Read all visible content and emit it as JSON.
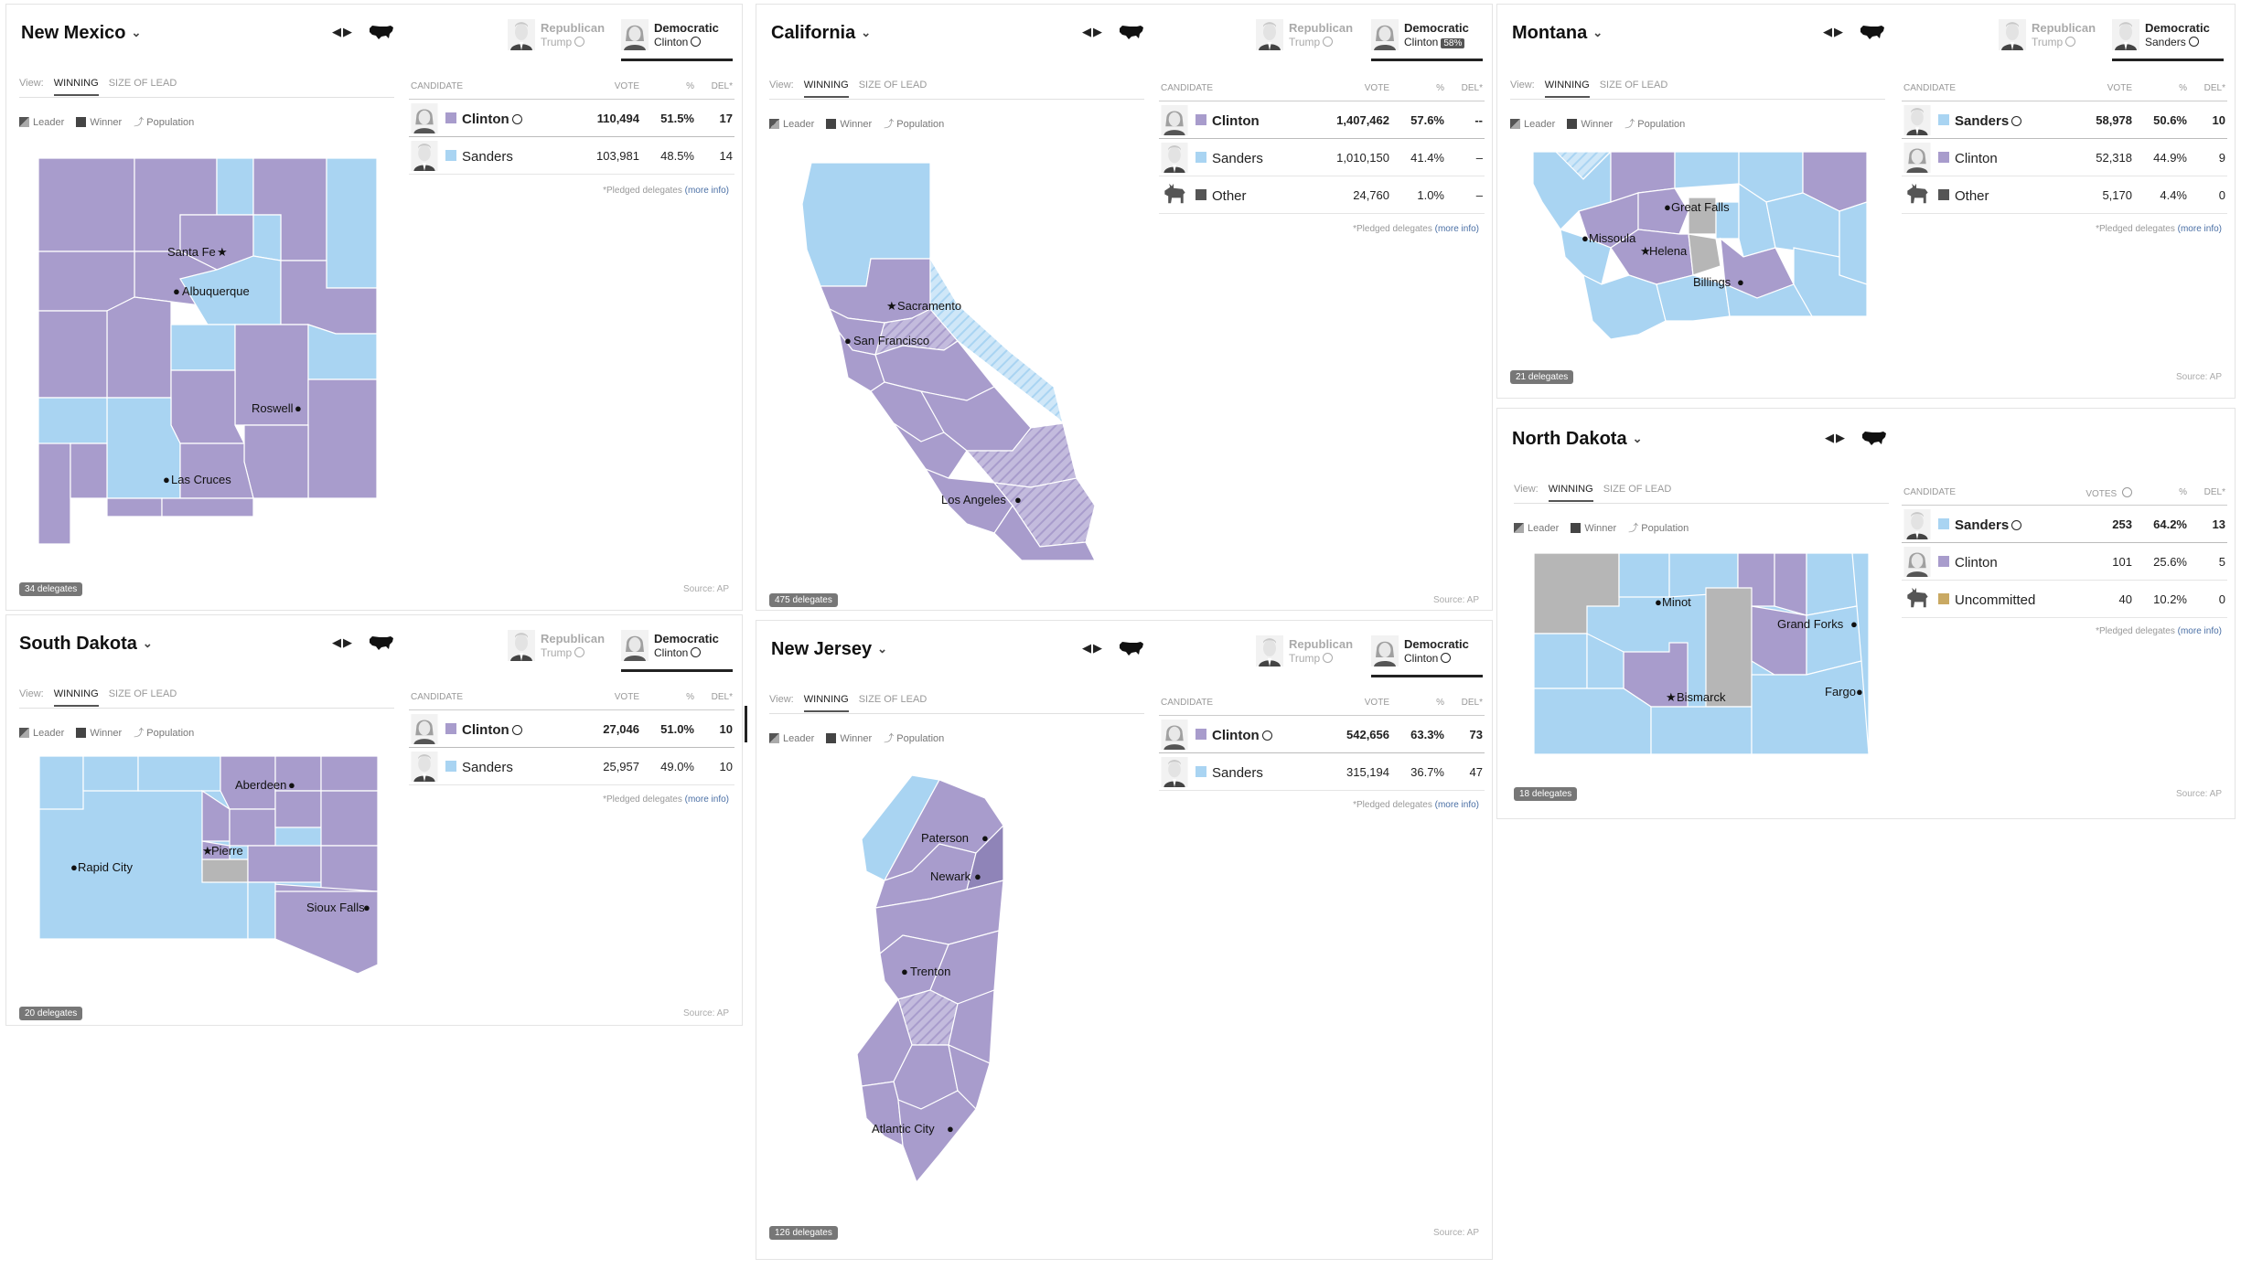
{
  "colors": {
    "clinton": "#a89ccc",
    "sanders": "#a9d4f2",
    "other": "#555555",
    "uncommitted": "#c9a963",
    "tie": "#b6b6b6",
    "boundary": "#ffffff"
  },
  "common": {
    "view_label": "View:",
    "tab_winning": "WINNING",
    "tab_size": "SIZE OF LEAD",
    "leader": "Leader",
    "winner": "Winner",
    "population": "Population",
    "republican": "Republican",
    "democratic": "Democratic",
    "col_candidate": "CANDIDATE",
    "col_vote": "VOTE",
    "col_votes": "VOTES",
    "col_pct": "%",
    "col_del": "DEL*",
    "pledged_text": "*Pledged delegates",
    "more_info": "(more info)",
    "source": "Source: AP"
  },
  "panels": {
    "nm": {
      "state": "New Mexico",
      "rep_candidate": "Trump",
      "dem_candidate": "Clinton",
      "delegates": "34 delegates",
      "rows": [
        {
          "name": "Clinton",
          "vote": "110,494",
          "pct": "51.5%",
          "del": "17",
          "avatar": "clinton-avatar",
          "color": "clinton",
          "check": true
        },
        {
          "name": "Sanders",
          "vote": "103,981",
          "pct": "48.5%",
          "del": "14",
          "avatar": "sanders-avatar",
          "color": "sanders",
          "check": false
        }
      ],
      "cities": [
        "Santa Fe",
        "Albuquerque",
        "Roswell",
        "Las Cruces"
      ]
    },
    "ca": {
      "state": "California",
      "rep_candidate": "Trump",
      "dem_candidate": "Clinton",
      "dem_badge": "58%",
      "delegates": "475 delegates",
      "rows": [
        {
          "name": "Clinton",
          "vote": "1,407,462",
          "pct": "57.6%",
          "del": "--",
          "avatar": "clinton-avatar",
          "color": "clinton",
          "check": false
        },
        {
          "name": "Sanders",
          "vote": "1,010,150",
          "pct": "41.4%",
          "del": "–",
          "avatar": "sanders-avatar",
          "color": "sanders",
          "check": false
        },
        {
          "name": "Other",
          "vote": "24,760",
          "pct": "1.0%",
          "del": "–",
          "avatar": "donkey-icon",
          "color": "other",
          "check": false
        }
      ],
      "cities": [
        "Sacramento",
        "San Francisco",
        "Los Angeles"
      ]
    },
    "mt": {
      "state": "Montana",
      "rep_candidate": "Trump",
      "dem_candidate": "Sanders",
      "delegates": "21 delegates",
      "rows": [
        {
          "name": "Sanders",
          "vote": "58,978",
          "pct": "50.6%",
          "del": "10",
          "avatar": "sanders-avatar",
          "color": "sanders",
          "check": true
        },
        {
          "name": "Clinton",
          "vote": "52,318",
          "pct": "44.9%",
          "del": "9",
          "avatar": "clinton-avatar",
          "color": "clinton",
          "check": false
        },
        {
          "name": "Other",
          "vote": "5,170",
          "pct": "4.4%",
          "del": "0",
          "avatar": "donkey-icon",
          "color": "other",
          "check": false
        }
      ],
      "cities": [
        "Great Falls",
        "Missoula",
        "Helena",
        "Billings"
      ]
    },
    "nd": {
      "state": "North Dakota",
      "delegates": "18 delegates",
      "rows": [
        {
          "name": "Sanders",
          "vote": "253",
          "pct": "64.2%",
          "del": "13",
          "avatar": "sanders-avatar",
          "color": "sanders",
          "check": true
        },
        {
          "name": "Clinton",
          "vote": "101",
          "pct": "25.6%",
          "del": "5",
          "avatar": "clinton-avatar",
          "color": "clinton",
          "check": false
        },
        {
          "name": "Uncommitted",
          "vote": "40",
          "pct": "10.2%",
          "del": "0",
          "avatar": "donkey-icon",
          "color": "uncommitted",
          "check": false
        }
      ],
      "cities": [
        "Minot",
        "Grand Forks",
        "Bismarck",
        "Fargo"
      ]
    },
    "sd": {
      "state": "South Dakota",
      "rep_candidate": "Trump",
      "dem_candidate": "Clinton",
      "delegates": "20 delegates",
      "rows": [
        {
          "name": "Clinton",
          "vote": "27,046",
          "pct": "51.0%",
          "del": "10",
          "avatar": "clinton-avatar",
          "color": "clinton",
          "check": true
        },
        {
          "name": "Sanders",
          "vote": "25,957",
          "pct": "49.0%",
          "del": "10",
          "avatar": "sanders-avatar",
          "color": "sanders",
          "check": false
        }
      ],
      "cities": [
        "Aberdeen",
        "Pierre",
        "Rapid City",
        "Sioux Falls"
      ]
    },
    "nj": {
      "state": "New Jersey",
      "rep_candidate": "Trump",
      "dem_candidate": "Clinton",
      "delegates": "126 delegates",
      "rows": [
        {
          "name": "Clinton",
          "vote": "542,656",
          "pct": "63.3%",
          "del": "73",
          "avatar": "clinton-avatar",
          "color": "clinton",
          "check": true
        },
        {
          "name": "Sanders",
          "vote": "315,194",
          "pct": "36.7%",
          "del": "47",
          "avatar": "sanders-avatar",
          "color": "sanders",
          "check": false
        }
      ],
      "cities": [
        "Paterson",
        "Newark",
        "Trenton",
        "Atlantic City"
      ]
    }
  }
}
